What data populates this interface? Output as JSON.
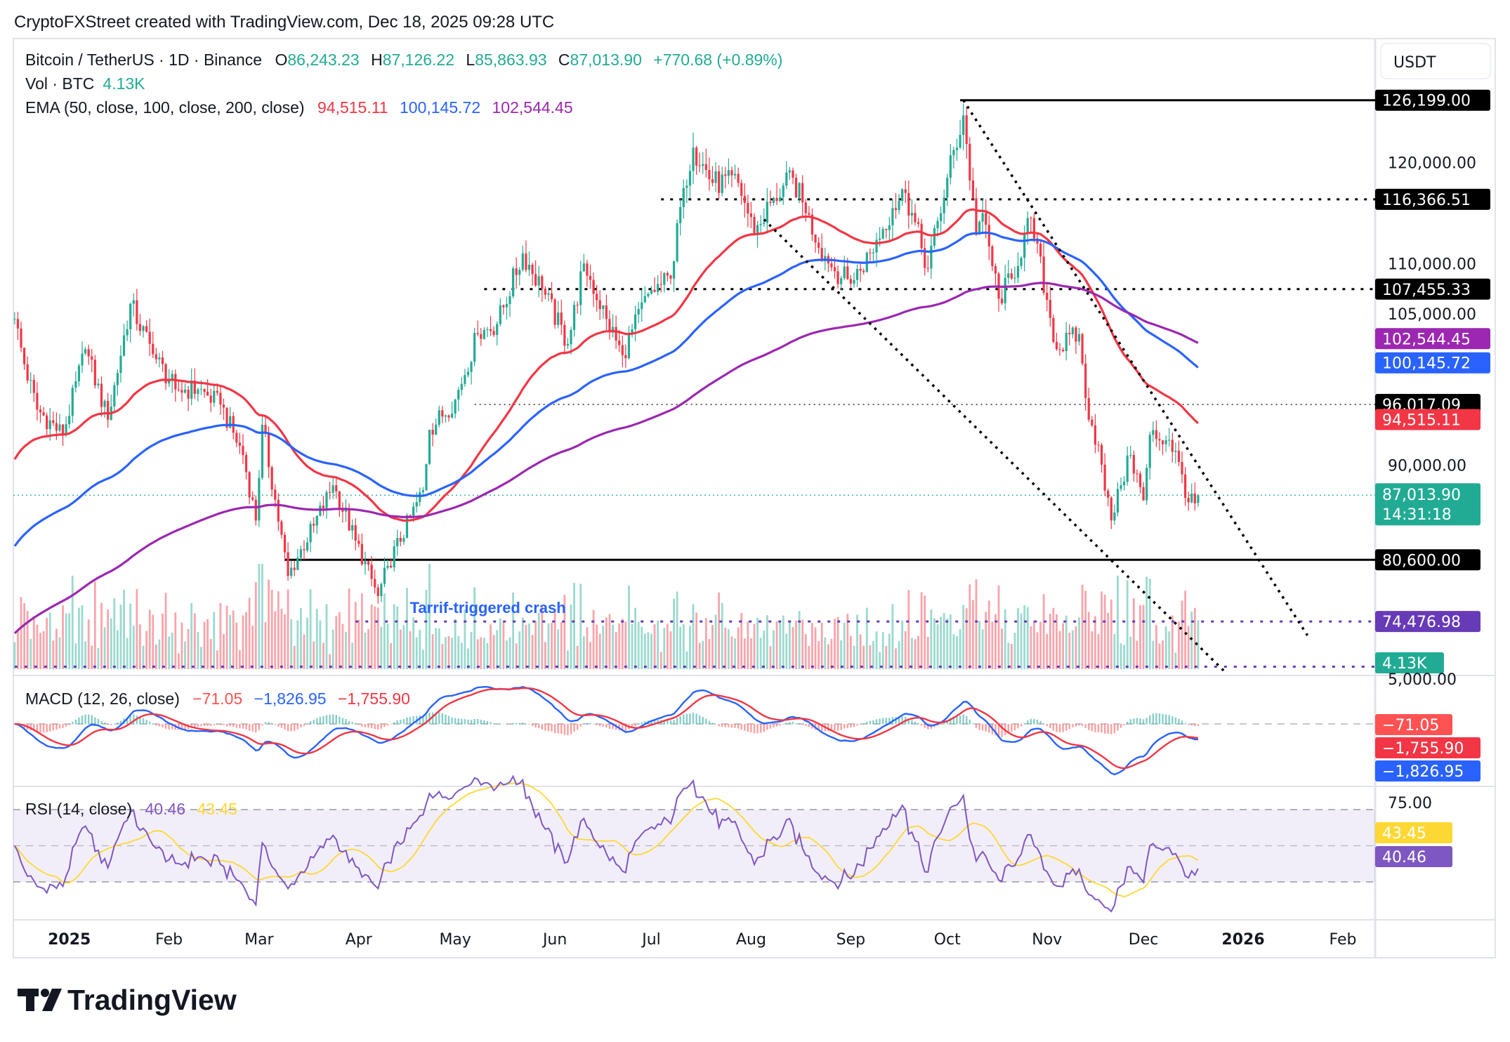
{
  "header": {
    "credit": "CryptoFXStreet created with TradingView.com, Dec 18, 2025 09:28 UTC"
  },
  "legend": {
    "symbol": "Bitcoin / TetherUS · 1D · Binance",
    "o_label": "O",
    "o": "86,243.23",
    "h_label": "H",
    "h": "87,126.22",
    "l_label": "L",
    "l": "85,863.93",
    "c_label": "C",
    "c": "87,013.90",
    "change": "+770.68 (+0.89%)",
    "vol_label": "Vol · BTC",
    "vol": "4.13K",
    "ema_label": "EMA (50, close, 100, close, 200, close)",
    "ema50": "94,515.11",
    "ema100": "100,145.72",
    "ema200": "102,544.45",
    "macd_label": "MACD (12, 26, close)",
    "macd_hist": "−71.05",
    "macd_line": "−1,826.95",
    "macd_signal": "−1,755.90",
    "rsi_label": "RSI (14, close)",
    "rsi": "40.46",
    "rsi_ma": "43.45"
  },
  "currency_button": "USDT",
  "brand": "TradingView",
  "colors": {
    "up": "#22ab94",
    "down": "#f23645",
    "ema50": "#f23645",
    "ema100": "#2962ff",
    "ema200": "#9c27b0",
    "rsi": "#7e57c2",
    "rsi_ma": "#fdd835",
    "level": "#000000",
    "purple_level": "#673ab7",
    "annotation": "#2962ff"
  },
  "chart_data": {
    "type": "candlestick",
    "price_axis": {
      "ticks": [
        "120,000.00",
        "110,000.00",
        "105,000.00",
        "90,000.00"
      ],
      "tick_values": [
        120000,
        110000,
        105000,
        90000
      ]
    },
    "time_axis": [
      {
        "label": "2025",
        "date": "2025-01-01",
        "bold": true
      },
      {
        "label": "Feb",
        "date": "2025-02-01"
      },
      {
        "label": "Mar",
        "date": "2025-03-01"
      },
      {
        "label": "Apr",
        "date": "2025-04-01"
      },
      {
        "label": "May",
        "date": "2025-05-01"
      },
      {
        "label": "Jun",
        "date": "2025-06-01"
      },
      {
        "label": "Jul",
        "date": "2025-07-01"
      },
      {
        "label": "Aug",
        "date": "2025-08-01"
      },
      {
        "label": "Sep",
        "date": "2025-09-01"
      },
      {
        "label": "Oct",
        "date": "2025-10-01"
      },
      {
        "label": "Nov",
        "date": "2025-11-01"
      },
      {
        "label": "Dec",
        "date": "2025-12-01"
      },
      {
        "label": "2026",
        "date": "2026-01-01",
        "bold": true
      },
      {
        "label": "Feb",
        "date": "2026-02-01"
      }
    ],
    "price_anchors": [
      [
        "2024-12-15",
        104500
      ],
      [
        "2024-12-18",
        100000
      ],
      [
        "2024-12-22",
        95500
      ],
      [
        "2024-12-30",
        93000
      ],
      [
        "2025-01-06",
        101500
      ],
      [
        "2025-01-13",
        94500
      ],
      [
        "2025-01-20",
        106000
      ],
      [
        "2025-01-27",
        101000
      ],
      [
        "2025-02-03",
        97500
      ],
      [
        "2025-02-10",
        97500
      ],
      [
        "2025-02-17",
        96000
      ],
      [
        "2025-02-24",
        91000
      ],
      [
        "2025-02-28",
        84500
      ],
      [
        "2025-03-02",
        94000
      ],
      [
        "2025-03-10",
        79000
      ],
      [
        "2025-03-18",
        84000
      ],
      [
        "2025-03-24",
        88000
      ],
      [
        "2025-03-31",
        82500
      ],
      [
        "2025-04-07",
        77000
      ],
      [
        "2025-04-10",
        80000
      ],
      [
        "2025-04-21",
        87500
      ],
      [
        "2025-04-23",
        93500
      ],
      [
        "2025-05-01",
        96500
      ],
      [
        "2025-05-08",
        103000
      ],
      [
        "2025-05-14",
        104000
      ],
      [
        "2025-05-22",
        111000
      ],
      [
        "2025-05-28",
        107500
      ],
      [
        "2025-06-05",
        102000
      ],
      [
        "2025-06-10",
        110000
      ],
      [
        "2025-06-17",
        104500
      ],
      [
        "2025-06-22",
        100900
      ],
      [
        "2025-06-30",
        107000
      ],
      [
        "2025-07-07",
        108500
      ],
      [
        "2025-07-11",
        117500
      ],
      [
        "2025-07-14",
        121500
      ],
      [
        "2025-07-20",
        118000
      ],
      [
        "2025-07-28",
        118000
      ],
      [
        "2025-08-02",
        113000
      ],
      [
        "2025-08-08",
        116500
      ],
      [
        "2025-08-14",
        118500
      ],
      [
        "2025-08-18",
        115000
      ],
      [
        "2025-08-25",
        110000
      ],
      [
        "2025-09-01",
        108000
      ],
      [
        "2025-09-07",
        111000
      ],
      [
        "2025-09-14",
        115500
      ],
      [
        "2025-09-18",
        117000
      ],
      [
        "2025-09-25",
        109500
      ],
      [
        "2025-10-01",
        118500
      ],
      [
        "2025-10-06",
        124700
      ],
      [
        "2025-10-10",
        113000
      ],
      [
        "2025-10-12",
        115000
      ],
      [
        "2025-10-17",
        106500
      ],
      [
        "2025-10-21",
        108500
      ],
      [
        "2025-10-27",
        114500
      ],
      [
        "2025-11-04",
        101500
      ],
      [
        "2025-11-11",
        103000
      ],
      [
        "2025-11-14",
        94500
      ],
      [
        "2025-11-17",
        92000
      ],
      [
        "2025-11-21",
        84500
      ],
      [
        "2025-11-24",
        88000
      ],
      [
        "2025-11-27",
        91000
      ],
      [
        "2025-12-01",
        86500
      ],
      [
        "2025-12-03",
        93000
      ],
      [
        "2025-12-09",
        92500
      ],
      [
        "2025-12-12",
        90300
      ],
      [
        "2025-12-15",
        86300
      ],
      [
        "2025-12-17",
        86200
      ],
      [
        "2025-12-18",
        87013.9
      ]
    ],
    "ema_start": {
      "ema50": 90000,
      "ema100": 81500,
      "ema200": 73000
    },
    "last": {
      "close": 87013.9,
      "countdown": "14:31:18",
      "close_label": "87,013.90"
    },
    "levels": [
      {
        "price": 126199.0,
        "label": "126,199.00",
        "from": "2025-10-05",
        "style": "solid"
      },
      {
        "price": 116366.51,
        "label": "116,366.51",
        "from": "2025-07-04",
        "style": "dotted"
      },
      {
        "price": 107455.33,
        "label": "107,455.33",
        "from": "2025-05-10",
        "style": "dotted"
      },
      {
        "price": 96017.09,
        "label": "96,017.09",
        "from": "2025-05-07",
        "style": "fine"
      },
      {
        "price": 80600.0,
        "label": "80,600.00",
        "from": "2025-03-09",
        "style": "solid"
      },
      {
        "price": 74476.98,
        "label": "74,476.98",
        "from": "2025-03-31",
        "style": "purple"
      },
      {
        "price": 70000,
        "from": "2024-12-15",
        "style": "purple"
      }
    ],
    "ema_tags": [
      {
        "price": 102544.45,
        "label": "102,544.45",
        "color": "#9c27b0"
      },
      {
        "price": 100145.72,
        "label": "100,145.72",
        "color": "#2962ff"
      },
      {
        "price": 94515.11,
        "label": "94,515.11",
        "color": "#f23645"
      }
    ],
    "trendlines": [
      {
        "from": [
          "2025-10-06",
          126199
        ],
        "to": [
          "2026-01-21",
          73100
        ]
      },
      {
        "from": [
          "2025-08-05",
          114365
        ],
        "to": [
          "2025-12-27",
          69285
        ]
      }
    ],
    "annotation": {
      "text": "Tarrif-triggered crash",
      "date": "2025-04-30",
      "price": 75900
    },
    "volume_tag": "4.13K",
    "macd_axis": {
      "top_label": "5,000.00"
    },
    "macd_tags": [
      {
        "label": "−71.05",
        "color": "#ff5252"
      },
      {
        "label": "−1,755.90",
        "color": "#f23645"
      },
      {
        "label": "−1,826.95",
        "color": "#2962ff"
      }
    ],
    "rsi_axis": {
      "ticks": [
        "75.00"
      ],
      "bands": [
        70,
        50,
        30
      ]
    },
    "rsi_tags": [
      {
        "label": "43.45",
        "color": "#fdd835"
      },
      {
        "label": "40.46",
        "color": "#7e57c2"
      }
    ]
  }
}
